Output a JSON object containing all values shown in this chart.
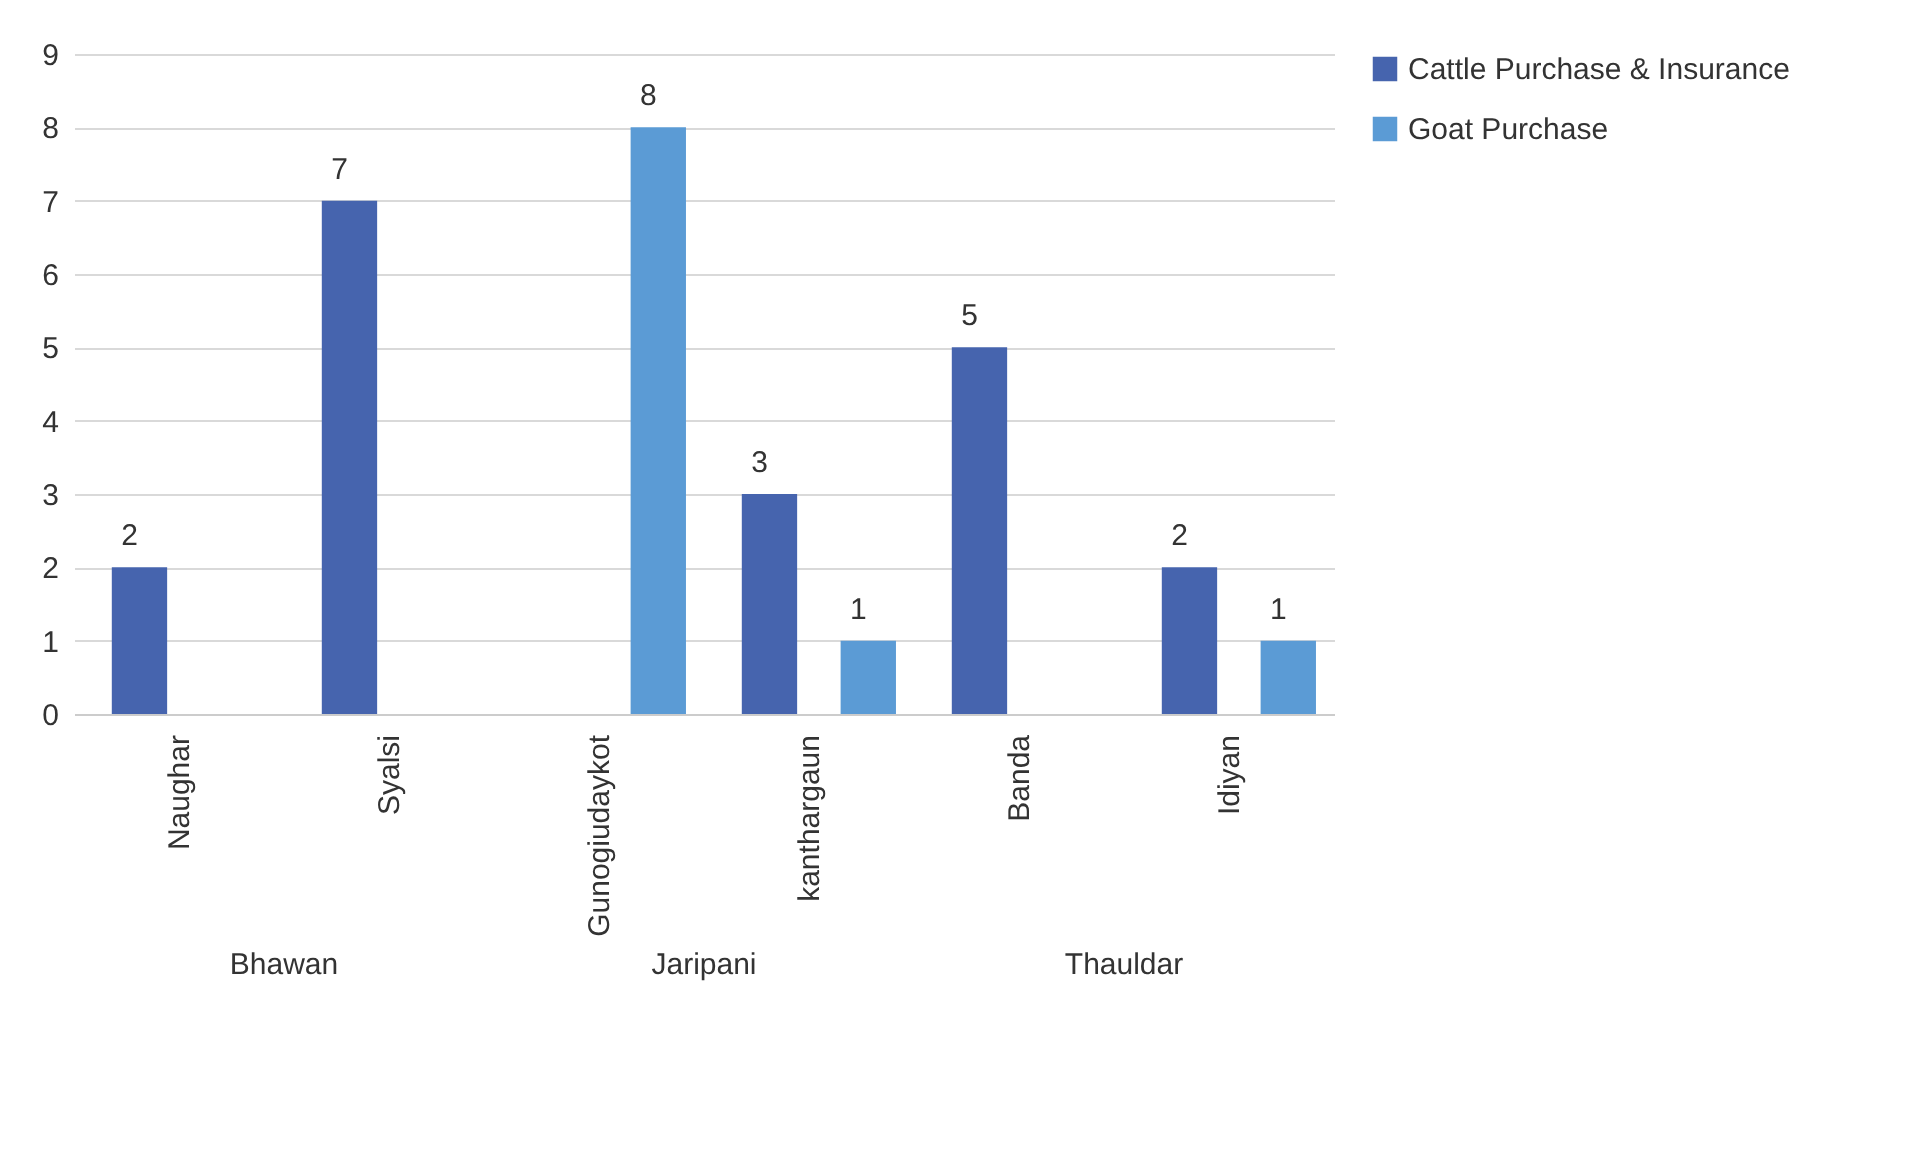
{
  "chart_data": {
    "type": "bar",
    "categories": [
      "Naughar",
      "Syalsi",
      "Gunogiudaykot",
      "kanthargaun",
      "Banda",
      "Idiyan"
    ],
    "series": [
      {
        "name": "Cattle Purchase & Insurance",
        "color": "#4664ae",
        "values": [
          2,
          7,
          null,
          3,
          5,
          2
        ]
      },
      {
        "name": "Goat Purchase",
        "color": "#5b9bd5",
        "values": [
          null,
          null,
          8,
          1,
          null,
          1
        ]
      }
    ],
    "ylim": [
      0,
      9
    ],
    "yticks": [
      0,
      1,
      2,
      3,
      4,
      5,
      6,
      7,
      8,
      9
    ],
    "grid": "y",
    "legend": "right",
    "data_labels": true,
    "annotations": [
      "Bhawan",
      "Jaripani",
      "Thauldar"
    ]
  }
}
